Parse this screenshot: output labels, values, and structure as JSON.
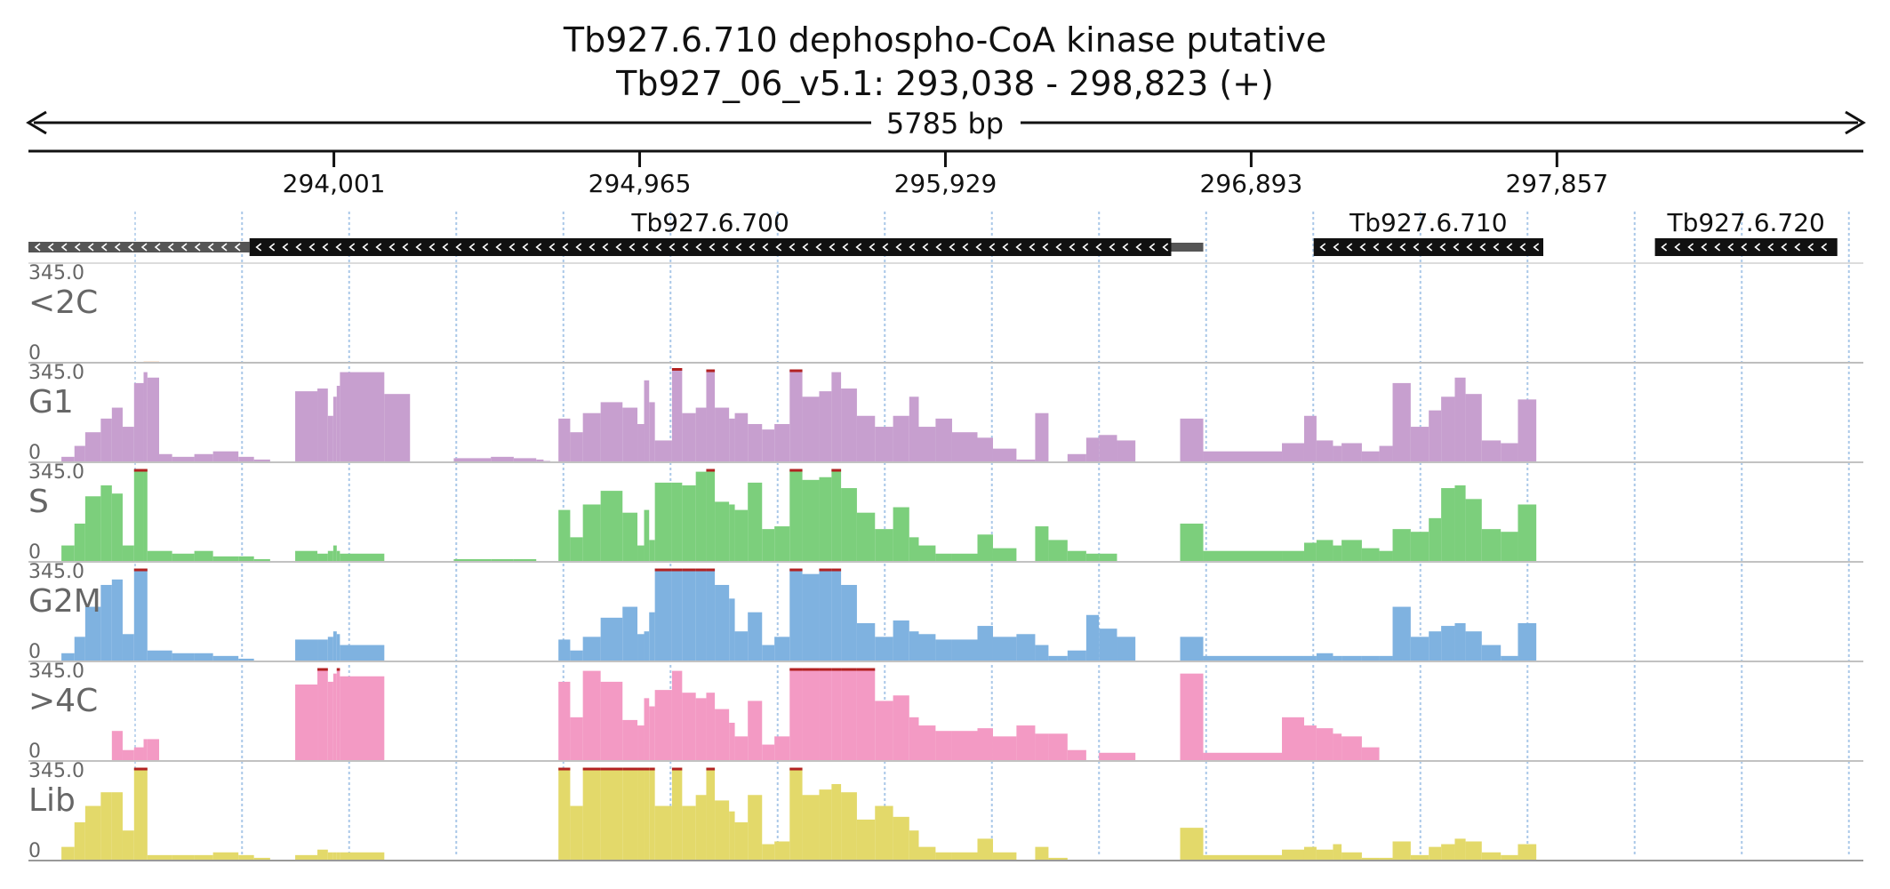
{
  "header": {
    "title": "Tb927.6.710  dephospho-CoA kinase  putative",
    "subtitle": "Tb927_06_v5.1: 293,038 - 298,823 (+)",
    "span_label": "5785 bp"
  },
  "chart_data": {
    "type": "area",
    "region": {
      "start": 293038,
      "end": 298823,
      "strand": "+"
    },
    "xlim": [
      293038,
      298823
    ],
    "ticks": [
      {
        "value": 294001,
        "label": "294,001"
      },
      {
        "value": 294965,
        "label": "294,965"
      },
      {
        "value": 295929,
        "label": "295,929"
      },
      {
        "value": 296893,
        "label": "296,893"
      },
      {
        "value": 297857,
        "label": "297,857"
      }
    ],
    "genes": [
      {
        "name": "",
        "start": 293038,
        "end": 293735,
        "strand": "-",
        "style": "partial"
      },
      {
        "name": "Tb927.6.700",
        "start": 293735,
        "end": 296641,
        "strand": "-",
        "style": "full"
      },
      {
        "name": "Tb927.6.710",
        "start": 297090,
        "end": 297814,
        "strand": "-",
        "style": "full"
      },
      {
        "name": "Tb927.6.720",
        "start": 298166,
        "end": 298741,
        "strand": "-",
        "style": "full"
      }
    ],
    "ymax": 345.0,
    "ymax_label": "345.0",
    "ymin_label": "0",
    "x": [
      293142,
      293183,
      293217,
      293266,
      293301,
      293335,
      293371,
      293401,
      293413,
      293450,
      293491,
      293561,
      293620,
      293700,
      293749,
      293800,
      293879,
      293949,
      293982,
      293999,
      294010,
      294020,
      294160,
      294241,
      294320,
      294379,
      294496,
      294568,
      294639,
      294662,
      294683,
      294709,
      294746,
      294786,
      294842,
      294911,
      294958,
      294979,
      294995,
      295013,
      295067,
      295099,
      295142,
      295175,
      295202,
      295247,
      295265,
      295306,
      295351,
      295390,
      295438,
      295478,
      295531,
      295570,
      295600,
      295650,
      295707,
      295764,
      295815,
      295845,
      295898,
      295950,
      296030,
      296079,
      296153,
      296212,
      296254,
      296314,
      296373,
      296413,
      296470,
      296528,
      296570,
      296620,
      296669,
      296742,
      296990,
      297060,
      297099,
      297151,
      297178,
      297242,
      297297,
      297339,
      297396,
      297453,
      297492,
      297535,
      297569,
      297620,
      297680,
      297734,
      297792,
      297815
    ],
    "series": [
      {
        "name": "<2C",
        "color": "#f4a460",
        "line_color": "#888888",
        "values": [
          2,
          2,
          2,
          2,
          2,
          2,
          2,
          4,
          4,
          2,
          2,
          0,
          0,
          0,
          0,
          0,
          0,
          0,
          0,
          0,
          0,
          0,
          0,
          0,
          0,
          0,
          0,
          0,
          0,
          0,
          0,
          0,
          0,
          0,
          0,
          0,
          0,
          0,
          0,
          0,
          0,
          0,
          0,
          0,
          0,
          0,
          0,
          0,
          0,
          0,
          0,
          0,
          0,
          0,
          0,
          0,
          0,
          0,
          0,
          0,
          0,
          0,
          0,
          0,
          0,
          0,
          0,
          0,
          0,
          0,
          0,
          0,
          0,
          0,
          0,
          0,
          0,
          0,
          0,
          0,
          0,
          0,
          0,
          0,
          0,
          0,
          0,
          0,
          0,
          0,
          0,
          0,
          0,
          0
        ]
      },
      {
        "name": "G1",
        "color": "#c79fcf",
        "line_color": "#999999",
        "values": [
          20,
          60,
          110,
          160,
          200,
          130,
          290,
          330,
          310,
          30,
          20,
          30,
          40,
          20,
          10,
          0,
          260,
          270,
          170,
          240,
          280,
          330,
          250,
          0,
          0,
          15,
          20,
          15,
          10,
          5,
          0,
          160,
          110,
          180,
          220,
          200,
          140,
          300,
          220,
          80,
          350,
          180,
          200,
          340,
          200,
          160,
          180,
          140,
          120,
          140,
          340,
          240,
          260,
          330,
          270,
          170,
          130,
          170,
          240,
          130,
          160,
          110,
          90,
          50,
          10,
          180,
          0,
          30,
          90,
          100,
          80,
          0,
          0,
          0,
          160,
          40,
          70,
          170,
          80,
          60,
          70,
          40,
          60,
          290,
          130,
          190,
          240,
          310,
          250,
          80,
          70,
          230,
          0,
          0
        ]
      },
      {
        "name": "S",
        "color": "#7ccf7c",
        "line_color": "#999999",
        "values": [
          60,
          140,
          240,
          280,
          250,
          60,
          340,
          340,
          40,
          40,
          30,
          40,
          20,
          20,
          10,
          0,
          40,
          30,
          40,
          60,
          40,
          30,
          0,
          0,
          0,
          10,
          10,
          10,
          0,
          0,
          0,
          190,
          90,
          210,
          260,
          180,
          60,
          190,
          80,
          290,
          290,
          280,
          330,
          340,
          220,
          210,
          190,
          290,
          120,
          130,
          340,
          300,
          310,
          340,
          270,
          180,
          120,
          200,
          90,
          60,
          30,
          30,
          100,
          50,
          0,
          130,
          80,
          40,
          30,
          30,
          0,
          0,
          0,
          0,
          140,
          40,
          40,
          70,
          80,
          60,
          80,
          50,
          40,
          120,
          110,
          160,
          270,
          280,
          230,
          120,
          110,
          210,
          0,
          0
        ]
      },
      {
        "name": "G2M",
        "color": "#7fb2e0",
        "line_color": "#999999",
        "values": [
          30,
          90,
          200,
          280,
          300,
          100,
          340,
          340,
          40,
          40,
          30,
          30,
          20,
          10,
          0,
          0,
          80,
          80,
          90,
          110,
          100,
          60,
          0,
          0,
          0,
          0,
          0,
          0,
          0,
          0,
          0,
          80,
          40,
          90,
          160,
          200,
          100,
          110,
          180,
          340,
          340,
          340,
          340,
          340,
          280,
          230,
          110,
          180,
          60,
          90,
          340,
          320,
          340,
          340,
          280,
          140,
          90,
          150,
          110,
          100,
          80,
          80,
          130,
          90,
          100,
          60,
          20,
          40,
          170,
          120,
          90,
          0,
          0,
          0,
          90,
          20,
          20,
          20,
          30,
          20,
          20,
          20,
          20,
          200,
          90,
          110,
          130,
          140,
          110,
          60,
          20,
          140,
          0,
          0
        ]
      },
      {
        "name": ">4C",
        "color": "#f39ac4",
        "line_color": "#999999",
        "values": [
          0,
          0,
          0,
          0,
          110,
          40,
          50,
          80,
          80,
          0,
          0,
          0,
          0,
          0,
          0,
          0,
          280,
          340,
          290,
          320,
          340,
          310,
          0,
          0,
          0,
          0,
          0,
          0,
          0,
          0,
          0,
          290,
          160,
          330,
          290,
          150,
          130,
          230,
          200,
          260,
          330,
          250,
          230,
          250,
          190,
          140,
          90,
          220,
          60,
          90,
          340,
          340,
          340,
          340,
          340,
          340,
          220,
          240,
          160,
          130,
          110,
          110,
          120,
          90,
          130,
          100,
          100,
          40,
          0,
          30,
          30,
          0,
          0,
          0,
          320,
          30,
          160,
          130,
          120,
          100,
          90,
          50,
          0,
          0,
          0,
          0,
          0,
          0,
          0,
          0,
          0,
          0,
          0,
          0
        ]
      },
      {
        "name": "Lib",
        "color": "#e3d96a",
        "line_color": "#999999",
        "values": [
          50,
          140,
          200,
          250,
          250,
          110,
          340,
          340,
          20,
          20,
          20,
          20,
          30,
          20,
          10,
          0,
          20,
          40,
          30,
          30,
          30,
          30,
          0,
          0,
          0,
          0,
          0,
          0,
          0,
          0,
          0,
          340,
          200,
          340,
          340,
          340,
          340,
          340,
          340,
          200,
          340,
          200,
          240,
          340,
          220,
          180,
          140,
          240,
          60,
          70,
          340,
          240,
          260,
          280,
          250,
          150,
          200,
          160,
          110,
          50,
          30,
          30,
          80,
          30,
          0,
          50,
          10,
          0,
          0,
          0,
          0,
          0,
          0,
          0,
          120,
          20,
          40,
          50,
          40,
          60,
          30,
          10,
          10,
          70,
          20,
          50,
          60,
          80,
          70,
          30,
          20,
          60,
          0,
          0
        ]
      }
    ]
  }
}
